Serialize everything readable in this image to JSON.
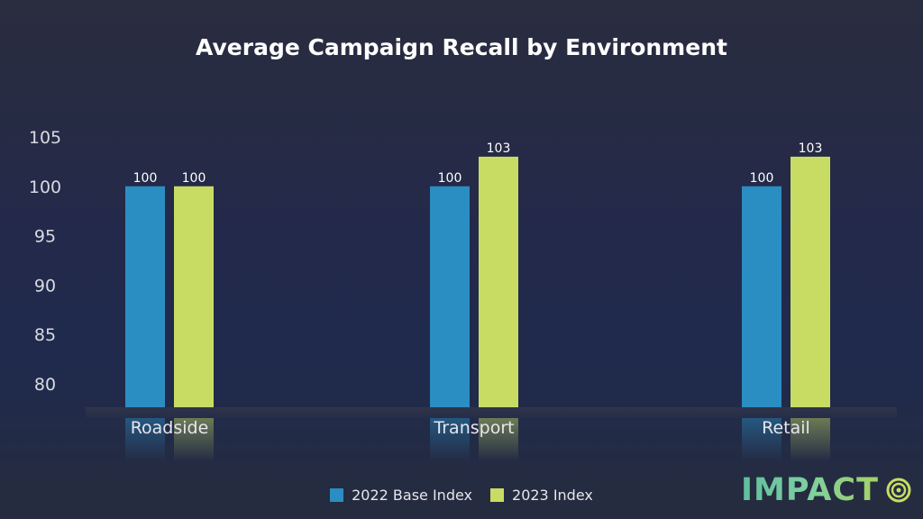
{
  "chart_data": {
    "type": "bar",
    "title": "Average Campaign Recall by Environment",
    "categories": [
      "Roadside",
      "Transport",
      "Retail"
    ],
    "series": [
      {
        "name": "2022 Base Index",
        "values": [
          100,
          100,
          100
        ],
        "color": "#2b8ec3",
        "labels": [
          "100",
          "100",
          "100"
        ]
      },
      {
        "name": "2023 Index",
        "values": [
          100,
          103,
          103
        ],
        "color": "#c8dc64",
        "labels": [
          "100",
          "103",
          "103"
        ]
      }
    ],
    "yticks": [
      "105",
      "100",
      "95",
      "90",
      "85",
      "80"
    ],
    "ylim": [
      78,
      105
    ],
    "xlabel": "",
    "ylabel": "",
    "grid": false,
    "legend_position": "bottom-center"
  },
  "branding": {
    "logo_text": "IMPACT",
    "logo_icon": "target-icon"
  }
}
